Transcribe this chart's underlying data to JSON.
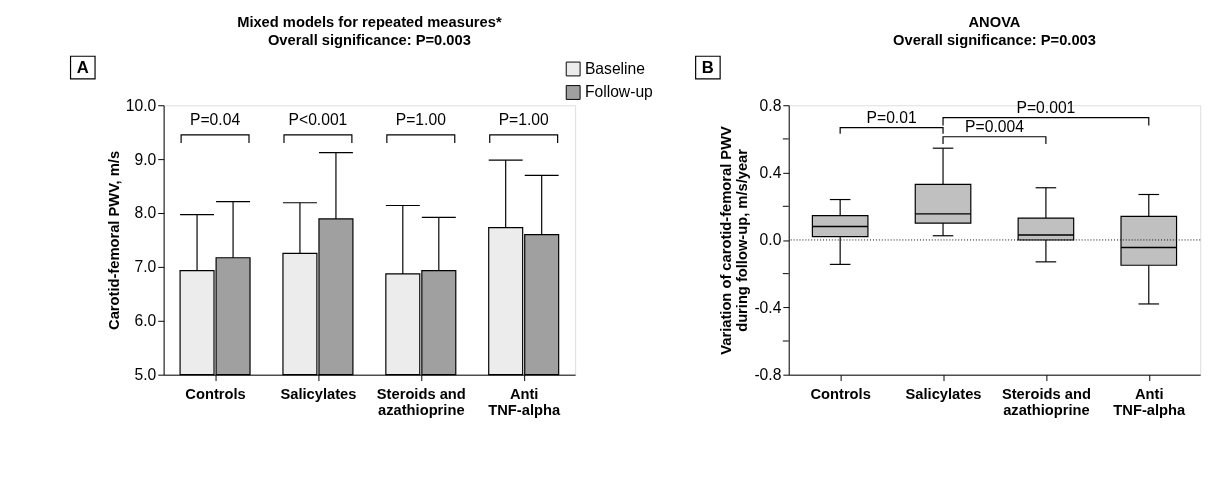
{
  "chart_data": [
    {
      "type": "bar",
      "title": "Mixed models for repeated measures*",
      "subtitle": "Overall significance: P=0.003",
      "ylabel": "Carotid-femoral PWV, m/s",
      "categories": [
        "Controls",
        "Salicylates",
        "Steroids and azathioprine",
        "Anti TNF-alpha"
      ],
      "series": [
        {
          "name": "Baseline",
          "color": "#ececec",
          "values": [
            6.93,
            7.25,
            6.87,
            7.73
          ],
          "errors": [
            [
              6.93,
              7.97
            ],
            [
              7.25,
              8.19
            ],
            [
              6.87,
              8.14
            ],
            [
              7.73,
              8.98
            ]
          ]
        },
        {
          "name": "Follow-up",
          "color": "#a0a0a0",
          "values": [
            7.17,
            7.89,
            6.93,
            7.6
          ],
          "errors": [
            [
              7.17,
              8.21
            ],
            [
              7.89,
              9.12
            ],
            [
              6.93,
              7.92
            ],
            [
              7.6,
              8.7
            ]
          ]
        }
      ],
      "ylim": [
        5,
        10
      ],
      "yticks": [
        {
          "value": 5,
          "label": "5.0"
        },
        {
          "value": 6,
          "label": "6.0"
        },
        {
          "value": 7,
          "label": "7.0"
        },
        {
          "value": 8,
          "label": "8.0"
        },
        {
          "value": 9,
          "label": "9.0"
        },
        {
          "value": 10,
          "label": "10.0"
        }
      ],
      "legend": "top right",
      "grid": false,
      "annotations": [
        "A",
        "P=0.04",
        "P<0.001",
        "P=1.00",
        "P=1.00"
      ]
    },
    {
      "type": "box",
      "title": "ANOVA",
      "subtitle": "Overall significance: P=0.003",
      "ylabel": "Variation of carotid-femoral PWV during follow-up, m/s/year",
      "categories": [
        "Controls",
        "Salicylates",
        "Steroids and azathioprine",
        "Anti TNF-alpha"
      ],
      "color": "#c0c0c0",
      "boxes": [
        {
          "low": -0.145,
          "q1": 0.02,
          "median": 0.08,
          "q3": 0.145,
          "high": 0.24
        },
        {
          "low": 0.025,
          "q1": 0.1,
          "median": 0.155,
          "q3": 0.33,
          "high": 0.545
        },
        {
          "low": -0.13,
          "q1": 0.0,
          "median": 0.03,
          "q3": 0.13,
          "high": 0.31
        },
        {
          "low": -0.38,
          "q1": -0.15,
          "median": -0.045,
          "q3": 0.14,
          "high": 0.27
        }
      ],
      "ylim": [
        -0.8,
        0.8
      ],
      "yticks": [
        {
          "value": -0.8,
          "label": "-0.8"
        },
        {
          "value": -0.6,
          "label": null
        },
        {
          "value": -0.4,
          "label": "-0.4"
        },
        {
          "value": -0.2,
          "label": null
        },
        {
          "value": 0,
          "label": "0.0"
        },
        {
          "value": 0.2,
          "label": null
        },
        {
          "value": 0.4,
          "label": "0.4"
        },
        {
          "value": 0.6,
          "label": null
        },
        {
          "value": 0.8,
          "label": "0.8"
        }
      ],
      "ref_lines": [
        {
          "axis": "y",
          "value": 0,
          "line_style": "dotted"
        }
      ],
      "grid": false,
      "annotations": [
        "B",
        "P=0.01",
        "P=0.004",
        "P=0.001"
      ]
    }
  ]
}
